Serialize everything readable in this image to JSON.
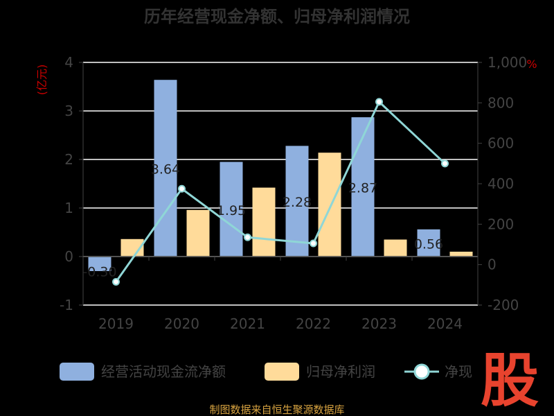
{
  "chart_data": {
    "type": "bar",
    "title": "历年经营现金净额、归母净利润情况",
    "categories": [
      "2019",
      "2020",
      "2021",
      "2022",
      "2023",
      "2024"
    ],
    "series": [
      {
        "name": "经营活动现金流净额",
        "type": "bar",
        "axis": "left",
        "color": "#8fb0df",
        "values": [
          -0.3,
          3.64,
          1.95,
          2.28,
          2.87,
          0.56
        ],
        "labels": [
          "-0.30",
          "3.64",
          "1.95",
          "2.28",
          "2.87",
          "0.56"
        ]
      },
      {
        "name": "归母净利润",
        "type": "bar",
        "axis": "left",
        "color": "#ffdb9a",
        "values": [
          0.36,
          0.96,
          1.42,
          2.14,
          0.35,
          0.1
        ]
      },
      {
        "name": "净现比",
        "type": "line",
        "axis": "right",
        "color": "#8fd6d6",
        "values": [
          -85,
          375,
          135,
          105,
          805,
          500
        ]
      }
    ],
    "y_left": {
      "unit": "(亿元)",
      "ticks": [
        "4",
        "3",
        "2",
        "1",
        "0",
        "-1"
      ],
      "range": [
        -1,
        4
      ]
    },
    "y_right": {
      "unit": "%",
      "ticks": [
        "1,000",
        "800",
        "600",
        "400",
        "200",
        "0",
        "-200"
      ],
      "range": [
        -200,
        1000
      ]
    },
    "legend_placement": "bottom",
    "grid": true
  },
  "legend_visible": [
    "经营活动现金流净额",
    "归母净利润",
    "净现比"
  ],
  "legend_shown_text": [
    "经营活动现金流净额",
    "归母净利润",
    "净现"
  ],
  "source": "制图数据来自恒生聚源数据库",
  "logo_text": "股"
}
